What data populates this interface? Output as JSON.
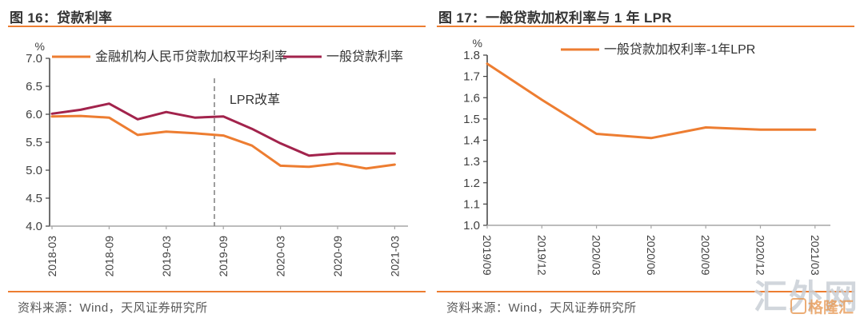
{
  "colors": {
    "accent": "#ED7D31",
    "crimson": "#A2234C",
    "axis": "#404040",
    "axis_light": "#A6A6A6",
    "text": "#333333",
    "source_text": "#595959",
    "annotation_line": "#7F7F7F"
  },
  "charts": [
    {
      "title": "图 16：贷款利率",
      "source": "资料来源：Wind，天风证券研究所"
    },
    {
      "title": "图 17：一般贷款加权利率与 1 年 LPR",
      "source": "资料来源：Wind，天风证券研究所"
    }
  ],
  "chart_data": [
    {
      "type": "line",
      "title": "图 16：贷款利率",
      "unit": "%",
      "categories": [
        "2018-03",
        "2018-06",
        "2018-09",
        "2018-12",
        "2019-03",
        "2019-06",
        "2019-09",
        "2019-12",
        "2020-03",
        "2020-06",
        "2020-09",
        "2020-12",
        "2021-03"
      ],
      "x_tick_labels": [
        "2018-03",
        "2018-09",
        "2019-03",
        "2019-09",
        "2020-03",
        "2020-09",
        "2021-03"
      ],
      "series": [
        {
          "name": "金融机构人民币贷款加权平均利率",
          "color": "#ED7D31",
          "values": [
            5.96,
            5.97,
            5.94,
            5.63,
            5.69,
            5.66,
            5.62,
            5.44,
            5.08,
            5.06,
            5.12,
            5.03,
            5.1
          ]
        },
        {
          "name": "一般贷款利率",
          "color": "#A2234C",
          "values": [
            6.01,
            6.08,
            6.19,
            5.91,
            6.04,
            5.94,
            5.96,
            5.74,
            5.48,
            5.26,
            5.3,
            5.3,
            5.3
          ]
        }
      ],
      "ylim": [
        4.0,
        7.0
      ],
      "ytick_step": 0.5,
      "grid": false,
      "legend_position": "top",
      "annotation": {
        "label": "LPR改革",
        "between_categories": [
          "2019-06",
          "2019-09"
        ]
      }
    },
    {
      "type": "line",
      "title": "图 17：一般贷款加权利率与 1 年 LPR",
      "unit": "%",
      "categories": [
        "2019/09",
        "2019/12",
        "2020/03",
        "2020/06",
        "2020/09",
        "2020/12",
        "2021/03"
      ],
      "x_tick_labels": [
        "2019/09",
        "2019/12",
        "2020/03",
        "2020/06",
        "2020/09",
        "2020/12",
        "2021/03"
      ],
      "series": [
        {
          "name": "一般贷款加权利率-1年LPR",
          "color": "#ED7D31",
          "values": [
            1.76,
            1.59,
            1.43,
            1.41,
            1.46,
            1.45,
            1.45
          ]
        }
      ],
      "ylim": [
        1.0,
        1.8
      ],
      "ytick_step": 0.1,
      "grid": false,
      "legend_position": "top"
    }
  ],
  "watermark": {
    "text": "汇外网",
    "logo": "格隆汇"
  }
}
